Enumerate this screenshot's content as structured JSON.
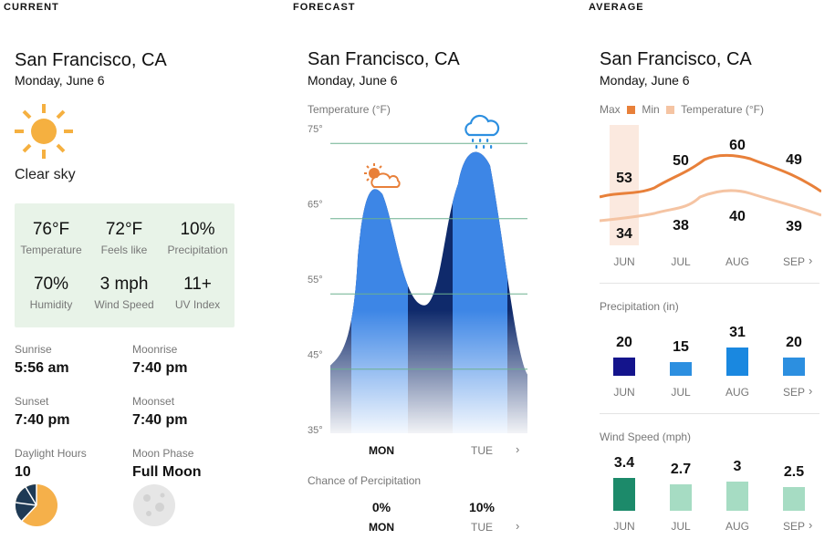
{
  "current": {
    "section_label": "CURRENT",
    "city": "San Francisco, CA",
    "date": "Monday, June 6",
    "icon": "sun-icon",
    "condition": "Clear sky",
    "stats": [
      {
        "value": "76°F",
        "label": "Temperature"
      },
      {
        "value": "72°F",
        "label": "Feels like"
      },
      {
        "value": "10%",
        "label": "Precipitation"
      },
      {
        "value": "70%",
        "label": "Humidity"
      },
      {
        "value": "3 mph",
        "label": "Wind Speed"
      },
      {
        "value": "11+",
        "label": "UV Index"
      }
    ],
    "sun_moon": [
      {
        "label": "Sunrise",
        "value": "5:56 am"
      },
      {
        "label": "Moonrise",
        "value": "7:40 pm"
      },
      {
        "label": "Sunset",
        "value": "7:40 pm"
      },
      {
        "label": "Moonset",
        "value": "7:40 pm"
      },
      {
        "label": "Daylight Hours",
        "value": "10"
      },
      {
        "label": "Moon Phase",
        "value": "Full Moon"
      }
    ]
  },
  "forecast": {
    "section_label": "FORECAST",
    "city": "San Francisco, CA",
    "date": "Monday, June 6",
    "chart_title": "Temperature (°F)",
    "y_ticks": [
      "75°",
      "65°",
      "55°",
      "45°",
      "35°"
    ],
    "days": [
      {
        "label": "MON",
        "icon": "partly-sunny-icon",
        "precip": "0%",
        "active": true
      },
      {
        "label": "TUE",
        "icon": "rain-cloud-icon",
        "precip": "10%",
        "active": false
      }
    ],
    "precip_title": "Chance of Percipitation",
    "next_icon": "chevron-right-icon"
  },
  "average": {
    "section_label": "AVERAGE",
    "city": "San Francisco, CA",
    "date": "Monday, June 6",
    "legend": {
      "max": "Max",
      "min": "Min",
      "title": "Temperature (°F)"
    },
    "months": [
      "JUN",
      "JUL",
      "AUG",
      "SEP"
    ],
    "precip_title": "Precipitation (in)",
    "wind_title": "Wind Speed (mph)",
    "colors": {
      "max": "#e8803a",
      "min": "#f5c4a3",
      "precip": [
        "#14148c",
        "#2c8fe0",
        "#1a88e0",
        "#2c8fe0"
      ],
      "wind": [
        "#1c8a6a",
        "#a6dcc3",
        "#a6dcc3",
        "#a6dcc3"
      ]
    }
  },
  "chart_data": [
    {
      "type": "area",
      "title": "Temperature (°F)",
      "xlabel": "",
      "ylabel": "",
      "categories": [
        "MON",
        "TUE"
      ],
      "ylim": [
        35,
        75
      ],
      "peaks": [
        68,
        73
      ],
      "trough": 52
    },
    {
      "type": "line",
      "title": "Temperature (°F)",
      "categories": [
        "JUN",
        "JUL",
        "AUG",
        "SEP"
      ],
      "series": [
        {
          "name": "Max",
          "values": [
            53,
            50,
            60,
            49
          ]
        },
        {
          "name": "Min",
          "values": [
            34,
            38,
            40,
            39
          ]
        }
      ]
    },
    {
      "type": "bar",
      "title": "Precipitation (in)",
      "categories": [
        "JUN",
        "JUL",
        "AUG",
        "SEP"
      ],
      "values": [
        20,
        15,
        31,
        20
      ],
      "display": [
        "20",
        "15",
        "31",
        "20"
      ]
    },
    {
      "type": "bar",
      "title": "Wind Speed (mph)",
      "categories": [
        "JUN",
        "JUL",
        "AUG",
        "SEP"
      ],
      "values": [
        3.4,
        2.7,
        3,
        2.5
      ],
      "display": [
        "3.4",
        "2.7",
        "3",
        "2.5"
      ]
    }
  ]
}
